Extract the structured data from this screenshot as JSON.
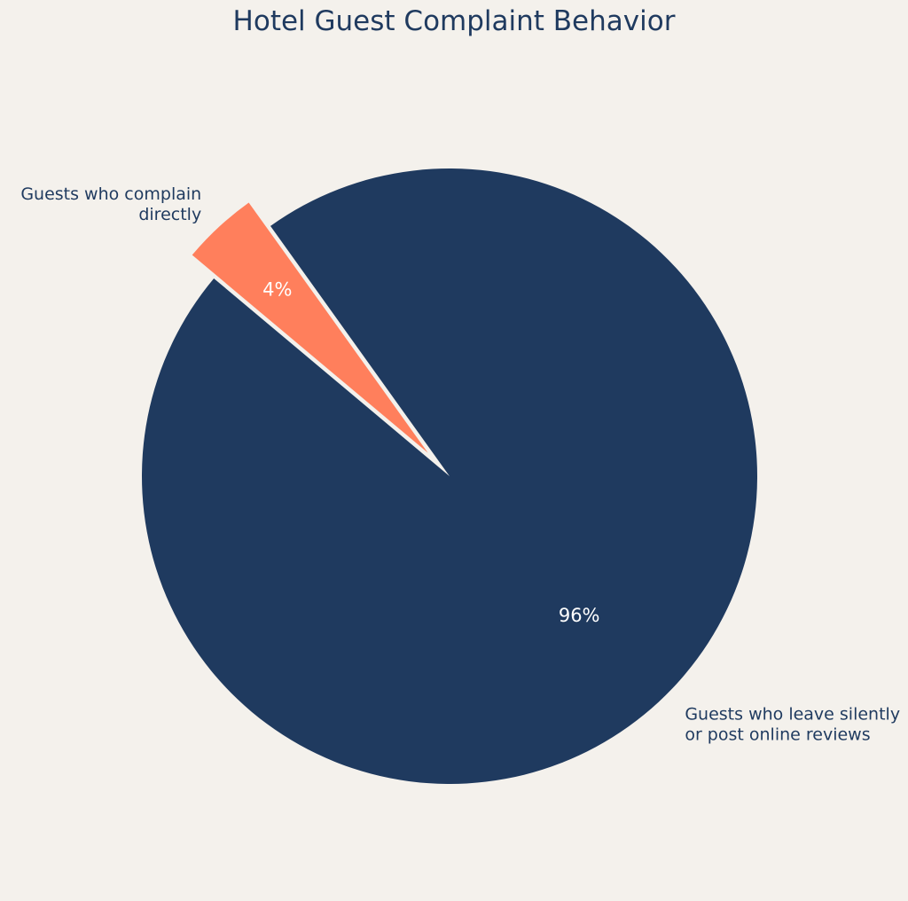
{
  "chart_data": {
    "type": "pie",
    "title": "Hotel Guest Complaint Behavior",
    "slices": [
      {
        "label_lines": [
          "Guests who complain",
          "directly"
        ],
        "value": 4,
        "display": "4%",
        "color": "#ff7f5c",
        "exploded": true
      },
      {
        "label_lines": [
          "Guests who leave silently",
          "or post online reviews"
        ],
        "value": 96,
        "display": "96%",
        "color": "#1f3a5f",
        "exploded": false
      }
    ],
    "background": "#f4f1ec",
    "start_angle_deg": 140,
    "direction": "clockwise"
  }
}
